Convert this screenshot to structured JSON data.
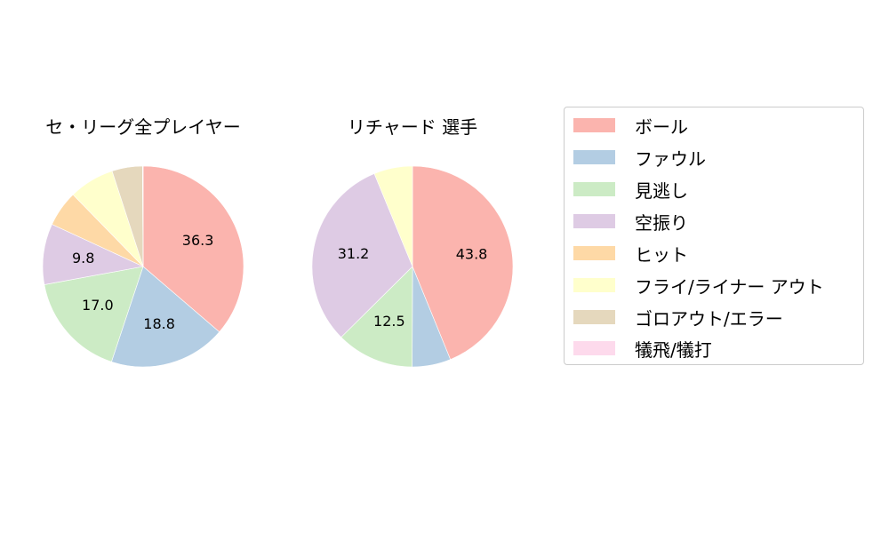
{
  "chart_data": [
    {
      "type": "pie",
      "title": "セ・リーグ全プレイヤー",
      "categories": [
        "ボール",
        "ファウル",
        "見逃し",
        "空振り",
        "ヒット",
        "フライ/ライナー アウト",
        "ゴロアウト/エラー",
        "犠飛/犠打"
      ],
      "values": [
        36.3,
        18.8,
        17.0,
        9.8,
        5.8,
        7.3,
        4.9,
        0.1
      ],
      "labels_shown": [
        "36.3",
        "18.8",
        "17.0",
        "9.8",
        "",
        "",
        "",
        ""
      ],
      "start_angle": 90,
      "direction": "clockwise"
    },
    {
      "type": "pie",
      "title": "リチャード  選手",
      "categories": [
        "ボール",
        "ファウル",
        "見逃し",
        "空振り",
        "ヒット",
        "フライ/ライナー アウト",
        "ゴロアウト/エラー",
        "犠飛/犠打"
      ],
      "values": [
        43.8,
        6.2,
        12.5,
        31.2,
        0,
        6.2,
        0,
        0
      ],
      "labels_shown": [
        "43.8",
        "",
        "12.5",
        "31.2",
        "",
        "",
        "",
        ""
      ],
      "start_angle": 90,
      "direction": "clockwise"
    }
  ],
  "titles": {
    "left": "セ・リーグ全プレイヤー",
    "right": "リチャード  選手"
  },
  "legend": {
    "items": [
      {
        "label": "ボール",
        "color": "#fbb4ae"
      },
      {
        "label": "ファウル",
        "color": "#b3cde3"
      },
      {
        "label": "見逃し",
        "color": "#ccebc5"
      },
      {
        "label": "空振り",
        "color": "#decbe4"
      },
      {
        "label": "ヒット",
        "color": "#fed9a6"
      },
      {
        "label": "フライ/ライナー アウト",
        "color": "#ffffcc"
      },
      {
        "label": "ゴロアウト/エラー",
        "color": "#e5d8bd"
      },
      {
        "label": "犠飛/犠打",
        "color": "#fddaec"
      }
    ]
  }
}
